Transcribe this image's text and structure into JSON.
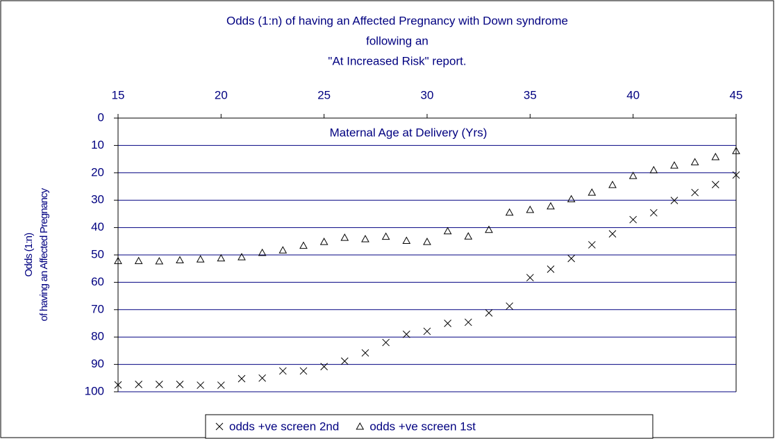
{
  "chart_data": {
    "type": "scatter",
    "title": [
      "Odds (1:n) of having an Affected Pregnancy with Down syndrome",
      "following an",
      "\"At Increased Risk\" report."
    ],
    "x_label": "Maternal Age at Delivery (Yrs)",
    "y_label": [
      "Odds (1:n)",
      "of having an Affected Pregnancy"
    ],
    "x": [
      15,
      16,
      17,
      18,
      19,
      20,
      21,
      22,
      23,
      24,
      25,
      26,
      27,
      28,
      29,
      30,
      31,
      32,
      33,
      34,
      35,
      36,
      37,
      38,
      39,
      40,
      41,
      42,
      43,
      44,
      45
    ],
    "series": [
      {
        "name": "odds +ve screen 2nd",
        "marker": "x",
        "color": "#000000",
        "values": [
          97.5,
          97.3,
          97.3,
          97.3,
          97.6,
          97.6,
          95.2,
          95.0,
          92.4,
          92.4,
          90.8,
          88.8,
          85.8,
          82.0,
          79.0,
          77.9,
          75.0,
          74.6,
          71.2,
          68.7,
          58.3,
          55.2,
          51.3,
          46.3,
          42.3,
          37.1,
          34.6,
          30.1,
          27.2,
          24.3,
          20.8
        ]
      },
      {
        "name": "odds +ve screen 1st",
        "marker": "triangle",
        "color": "#000000",
        "values": [
          52.2,
          52.2,
          52.3,
          51.9,
          51.6,
          51.2,
          50.8,
          49.2,
          48.3,
          46.6,
          45.2,
          43.7,
          44.2,
          43.3,
          44.8,
          45.2,
          41.3,
          43.2,
          40.8,
          34.5,
          33.5,
          32.2,
          29.6,
          27.2,
          24.4,
          21.1,
          19.0,
          17.3,
          16.1,
          14.2,
          12.0
        ]
      }
    ],
    "xlim": [
      15,
      45
    ],
    "xticks": [
      15,
      20,
      25,
      30,
      35,
      40,
      45
    ],
    "ylim": [
      0,
      100
    ],
    "y_reversed": true,
    "yticks": [
      0,
      10,
      20,
      30,
      40,
      50,
      60,
      70,
      80,
      90,
      100
    ],
    "grid": true,
    "grid_color": "#000080",
    "legend": "bottom"
  }
}
